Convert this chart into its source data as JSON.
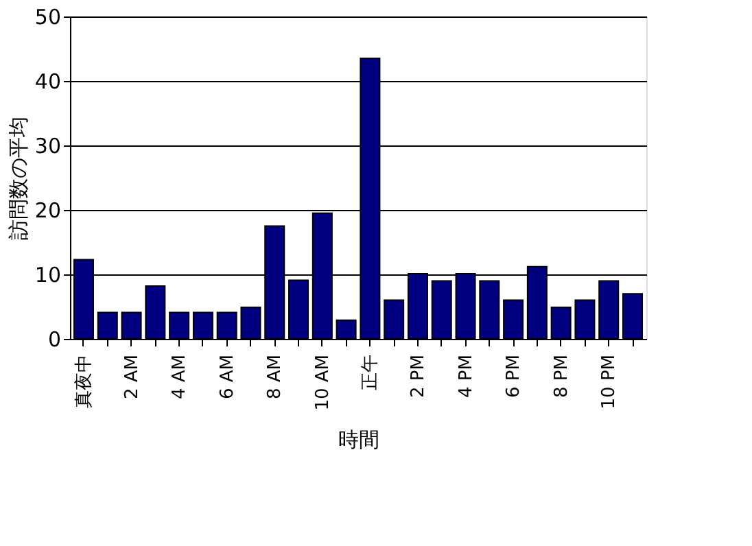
{
  "chart_data": {
    "type": "bar",
    "xlabel": "時間",
    "ylabel": "訪問数の平均",
    "categories": [
      "真夜中",
      null,
      "2 AM",
      null,
      "4 AM",
      null,
      "6 AM",
      null,
      "8 AM",
      null,
      "10 AM",
      null,
      "正午",
      null,
      "2 PM",
      null,
      "4 PM",
      null,
      "6 PM",
      null,
      "8 PM",
      null,
      "10 PM",
      null
    ],
    "values": [
      12.3,
      4.1,
      4.1,
      8.2,
      4.1,
      4.1,
      4.1,
      4.9,
      17.5,
      9.1,
      19.5,
      2.9,
      43.5,
      6,
      10.1,
      9,
      10.1,
      9,
      6,
      11.2,
      4.9,
      6,
      9,
      7
    ],
    "color": "#000080",
    "ylim": [
      0,
      50
    ],
    "yticks": [
      0,
      10,
      20,
      30,
      40,
      50
    ],
    "grid": "y"
  }
}
